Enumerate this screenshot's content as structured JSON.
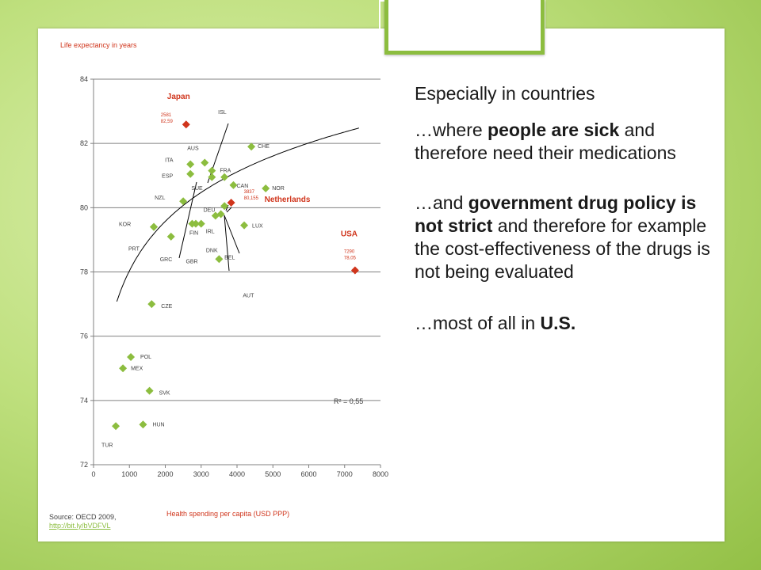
{
  "slide": {
    "heading": "Especially in countries",
    "point1_a": "…where ",
    "point1_b": "people are sick",
    "point1_c": " and therefore need their medications",
    "point2_a": "…and ",
    "point2_b": "government drug policy is not strict",
    "point2_c": " and therefore for example the cost-effectiveness of the drugs is not being evaluated",
    "point3_a": "…most of all in ",
    "point3_b": "U.S."
  },
  "source": {
    "label": "Source: OECD 2009,",
    "link": "http://bit.ly/bVDFVL"
  },
  "chart_data": {
    "type": "scatter",
    "ylabel": "Life expectancy in years",
    "xlabel": "Health spending per capita (USD PPP)",
    "xlim": [
      0,
      8000
    ],
    "ylim": [
      72,
      84
    ],
    "x_ticks": [
      0,
      1000,
      2000,
      3000,
      4000,
      5000,
      6000,
      7000,
      8000
    ],
    "y_ticks": [
      72,
      74,
      76,
      78,
      80,
      82,
      84
    ],
    "grid": "horizontal",
    "r_squared_label": "R² = 0,55",
    "colors": {
      "point": "#8cbd3f",
      "highlight": "#d0351c",
      "trend": "#000000",
      "grid": "#808080"
    },
    "points": [
      {
        "label": "TUR",
        "x": 620,
        "y": 73.2
      },
      {
        "label": "HUN",
        "x": 1380,
        "y": 73.25
      },
      {
        "label": "SVK",
        "x": 1560,
        "y": 74.3
      },
      {
        "label": "MEX",
        "x": 820,
        "y": 75.0
      },
      {
        "label": "POL",
        "x": 1040,
        "y": 75.35
      },
      {
        "label": "CZE",
        "x": 1620,
        "y": 77.0
      },
      {
        "label": "GRC",
        "x": 2160,
        "y": 79.1
      },
      {
        "label": "PRT",
        "x": 1680,
        "y": 79.4
      },
      {
        "label": "KOR",
        "x": 1680,
        "y": 79.4
      },
      {
        "label": "NZL",
        "x": 2500,
        "y": 80.2
      },
      {
        "label": "FIN",
        "x": 2850,
        "y": 79.5
      },
      {
        "label": "GBR",
        "x": 2750,
        "y": 79.5
      },
      {
        "label": "IRL",
        "x": 3000,
        "y": 79.5
      },
      {
        "label": "DNK",
        "x": 3400,
        "y": 79.75
      },
      {
        "label": "DEU",
        "x": 3550,
        "y": 79.8
      },
      {
        "label": "BEL",
        "x": 3650,
        "y": 80.05
      },
      {
        "label": "AUT",
        "x": 3500,
        "y": 78.4
      },
      {
        "label": "LUX",
        "x": 4200,
        "y": 79.45
      },
      {
        "label": "ITA",
        "x": 2700,
        "y": 81.35
      },
      {
        "label": "ESP",
        "x": 2700,
        "y": 81.05
      },
      {
        "label": "AUS",
        "x": 3100,
        "y": 81.4
      },
      {
        "label": "FRA",
        "x": 3300,
        "y": 81.15
      },
      {
        "label": "SUE",
        "x": 3300,
        "y": 80.95
      },
      {
        "label": "ISL",
        "x": 3650,
        "y": 80.95
      },
      {
        "label": "CAN",
        "x": 3900,
        "y": 80.7
      },
      {
        "label": "CHE",
        "x": 4400,
        "y": 81.9
      },
      {
        "label": "NOR",
        "x": 4800,
        "y": 80.6
      }
    ],
    "highlights": [
      {
        "label": "Japan",
        "x": 2581,
        "y": 82.59,
        "value_label": "2581\n82,59"
      },
      {
        "label": "Netherlands",
        "x": 3837,
        "y": 80.155,
        "value_label": "3837\n80,155"
      },
      {
        "label": "USA",
        "x": 7290,
        "y": 78.05,
        "value_label": "7290\n78,05"
      }
    ]
  }
}
